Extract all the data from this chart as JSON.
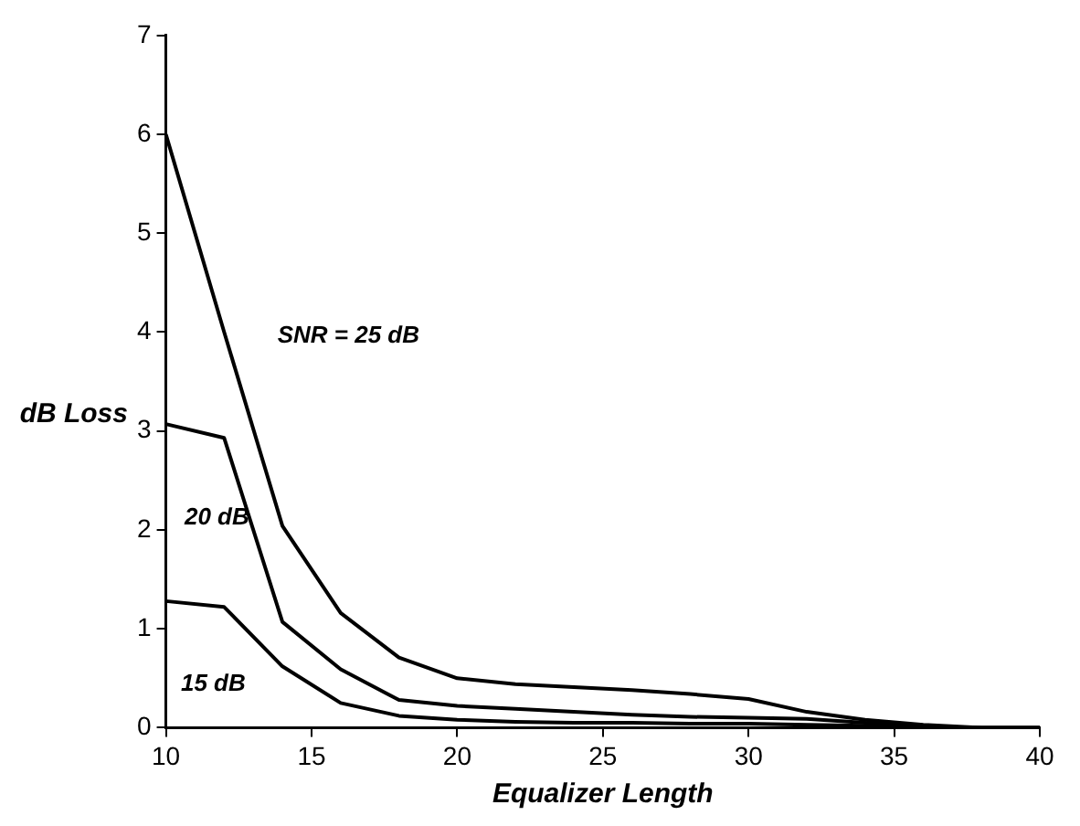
{
  "chart_data": {
    "type": "line",
    "xlabel": "Equalizer Length",
    "ylabel": "dB Loss",
    "x": [
      10,
      12,
      14,
      16,
      18,
      20,
      22,
      24,
      26,
      28,
      30,
      32,
      34,
      36,
      38,
      40
    ],
    "series": [
      {
        "name": "SNR = 25 dB",
        "color": "#000000",
        "values": [
          6.0,
          4.0,
          2.04,
          1.16,
          0.71,
          0.5,
          0.44,
          0.41,
          0.38,
          0.34,
          0.29,
          0.16,
          0.08,
          0.03,
          0,
          0
        ]
      },
      {
        "name": "20 dB",
        "color": "#000000",
        "values": [
          3.07,
          2.93,
          1.07,
          0.59,
          0.28,
          0.22,
          0.19,
          0.16,
          0.13,
          0.11,
          0.1,
          0.09,
          0.05,
          0.01,
          0,
          0
        ]
      },
      {
        "name": "15 dB",
        "color": "#000000",
        "values": [
          1.28,
          1.22,
          0.62,
          0.25,
          0.12,
          0.08,
          0.06,
          0.05,
          0.05,
          0.04,
          0.04,
          0.03,
          0.02,
          0,
          0,
          0
        ]
      }
    ],
    "xlim": [
      10,
      40
    ],
    "ylim": [
      0,
      7
    ],
    "xticks": [
      10,
      15,
      20,
      25,
      30,
      35,
      40
    ],
    "yticks": [
      0,
      1,
      2,
      3,
      4,
      5,
      6,
      7
    ]
  }
}
